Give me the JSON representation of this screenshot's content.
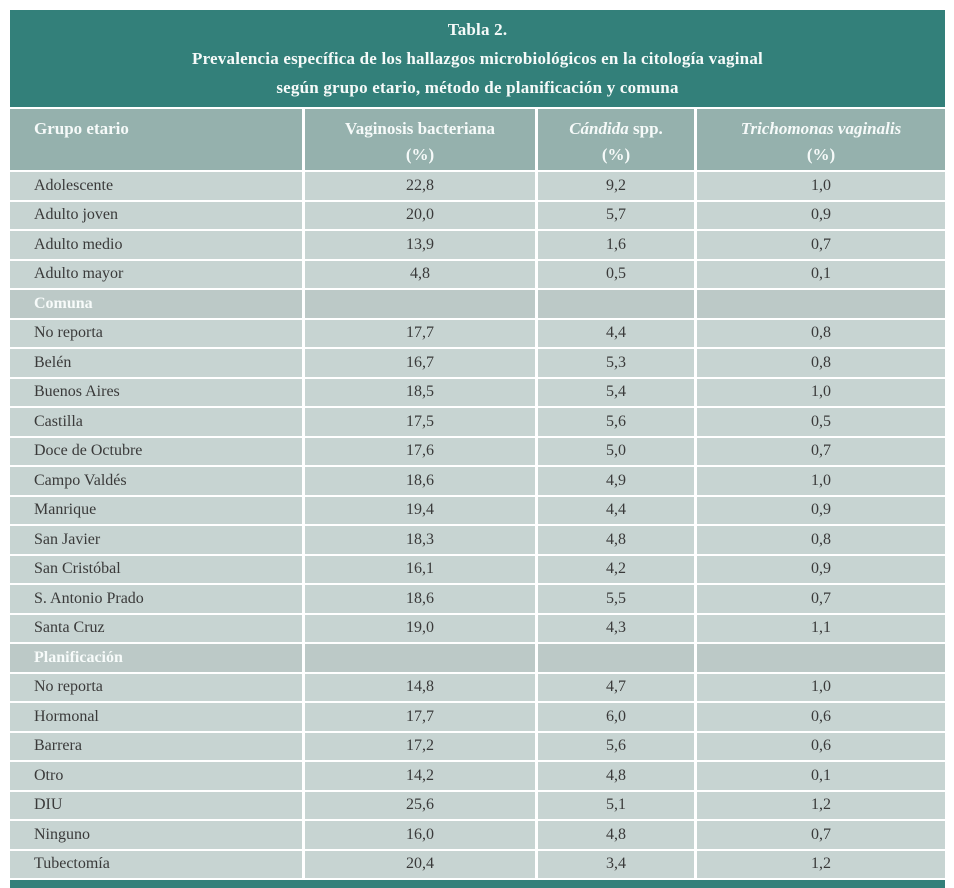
{
  "title": {
    "line1": "Tabla 2.",
    "line2": "Prevalencia específica de los hallazgos microbiológicos en la citología vaginal",
    "line3": "según grupo etario, método de planificación y comuna"
  },
  "columns": {
    "col1": "Grupo etario",
    "col2_name": "Vaginosis bacteriana",
    "col2_unit": "(%)",
    "col3_italic": "Cándida",
    "col3_rest": " spp.",
    "col3_unit": "(%)",
    "col4_italic": "Trichomonas vaginalis",
    "col4_unit": "(%)"
  },
  "rows": [
    {
      "type": "data",
      "label": "Adolescente",
      "vaginosis": "22,8",
      "candida": "9,2",
      "trichomonas": "1,0"
    },
    {
      "type": "data",
      "label": "Adulto joven",
      "vaginosis": "20,0",
      "candida": "5,7",
      "trichomonas": "0,9"
    },
    {
      "type": "data",
      "label": "Adulto medio",
      "vaginosis": "13,9",
      "candida": "1,6",
      "trichomonas": "0,7"
    },
    {
      "type": "data",
      "label": "Adulto mayor",
      "vaginosis": "4,8",
      "candida": "0,5",
      "trichomonas": "0,1"
    },
    {
      "type": "section",
      "label": "Comuna",
      "vaginosis": "",
      "candida": "",
      "trichomonas": ""
    },
    {
      "type": "data",
      "label": "No reporta",
      "vaginosis": "17,7",
      "candida": "4,4",
      "trichomonas": "0,8"
    },
    {
      "type": "data",
      "label": "Belén",
      "vaginosis": "16,7",
      "candida": "5,3",
      "trichomonas": "0,8"
    },
    {
      "type": "data",
      "label": "Buenos Aires",
      "vaginosis": "18,5",
      "candida": "5,4",
      "trichomonas": "1,0"
    },
    {
      "type": "data",
      "label": "Castilla",
      "vaginosis": "17,5",
      "candida": "5,6",
      "trichomonas": "0,5"
    },
    {
      "type": "data",
      "label": "Doce de Octubre",
      "vaginosis": "17,6",
      "candida": "5,0",
      "trichomonas": "0,7"
    },
    {
      "type": "data",
      "label": "Campo Valdés",
      "vaginosis": "18,6",
      "candida": "4,9",
      "trichomonas": "1,0"
    },
    {
      "type": "data",
      "label": "Manrique",
      "vaginosis": "19,4",
      "candida": "4,4",
      "trichomonas": "0,9"
    },
    {
      "type": "data",
      "label": "San Javier",
      "vaginosis": "18,3",
      "candida": "4,8",
      "trichomonas": "0,8"
    },
    {
      "type": "data",
      "label": "San Cristóbal",
      "vaginosis": "16,1",
      "candida": "4,2",
      "trichomonas": "0,9"
    },
    {
      "type": "data",
      "label": "S. Antonio Prado",
      "vaginosis": "18,6",
      "candida": "5,5",
      "trichomonas": "0,7"
    },
    {
      "type": "data",
      "label": "Santa Cruz",
      "vaginosis": "19,0",
      "candida": "4,3",
      "trichomonas": "1,1"
    },
    {
      "type": "section",
      "label": "Planificación",
      "vaginosis": "",
      "candida": "",
      "trichomonas": ""
    },
    {
      "type": "data",
      "label": "No reporta",
      "vaginosis": "14,8",
      "candida": "4,7",
      "trichomonas": "1,0"
    },
    {
      "type": "data",
      "label": "Hormonal",
      "vaginosis": "17,7",
      "candida": "6,0",
      "trichomonas": "0,6"
    },
    {
      "type": "data",
      "label": "Barrera",
      "vaginosis": "17,2",
      "candida": "5,6",
      "trichomonas": "0,6"
    },
    {
      "type": "data",
      "label": "Otro",
      "vaginosis": "14,2",
      "candida": "4,8",
      "trichomonas": "0,1"
    },
    {
      "type": "data",
      "label": "DIU",
      "vaginosis": "25,6",
      "candida": "5,1",
      "trichomonas": "1,2"
    },
    {
      "type": "data",
      "label": "Ninguno",
      "vaginosis": "16,0",
      "candida": "4,8",
      "trichomonas": "0,7"
    },
    {
      "type": "data",
      "label": "Tubectomía",
      "vaginosis": "20,4",
      "candida": "3,4",
      "trichomonas": "1,2"
    }
  ],
  "colors": {
    "title_band": "#33807A",
    "header_band": "#95B1AD",
    "data_row": "#C7D4D2",
    "section_row": "#BCC9C7",
    "separator": "#FFFFFF",
    "data_text": "#3A3A3A",
    "light_text": "#F6FAF9"
  }
}
